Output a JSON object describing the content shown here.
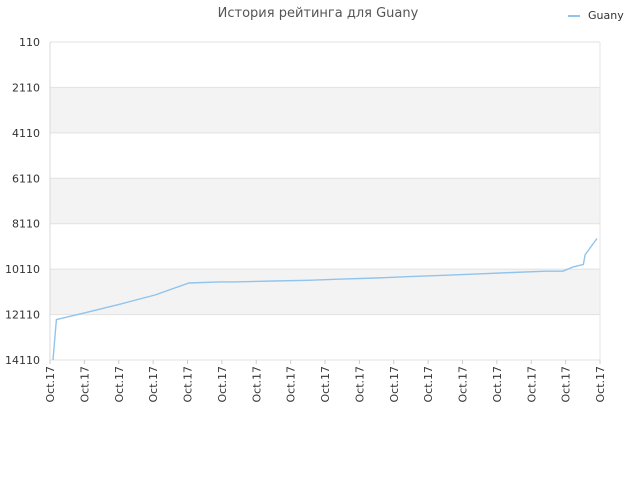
{
  "chart_data": {
    "type": "line",
    "title": "История рейтинга для Guany",
    "xlabel": "",
    "ylabel": "",
    "y_inverted": true,
    "ylim": [
      14110,
      110
    ],
    "y_ticks": [
      110,
      2110,
      4110,
      6110,
      8110,
      10110,
      12110,
      14110
    ],
    "x_tick_labels": [
      "Oct.17",
      "Oct.17",
      "Oct.17",
      "Oct.17",
      "Oct.17",
      "Oct.17",
      "Oct.17",
      "Oct.17",
      "Oct.17",
      "Oct.17",
      "Oct.17",
      "Oct.17",
      "Oct.17",
      "Oct.17",
      "Oct.17",
      "Oct.17",
      "Oct.17"
    ],
    "grid": "horizontal alternating bands",
    "legend_position": "top-right",
    "series": [
      {
        "name": "Guany",
        "color": "#90c4ec",
        "x": [
          0,
          0.1,
          1,
          2,
          3,
          4,
          4.9,
          5.3,
          6.5,
          7.5,
          8.5,
          9.5,
          10.5,
          11.5,
          12.5,
          13.5,
          14.5,
          15,
          15.3,
          15.6,
          15.65,
          16
        ],
        "y": [
          14110,
          12330,
          12010,
          11640,
          11250,
          10720,
          10670,
          10670,
          10630,
          10600,
          10550,
          10500,
          10440,
          10380,
          10320,
          10260,
          10200,
          10200,
          10010,
          9900,
          9480,
          8760
        ]
      }
    ]
  }
}
